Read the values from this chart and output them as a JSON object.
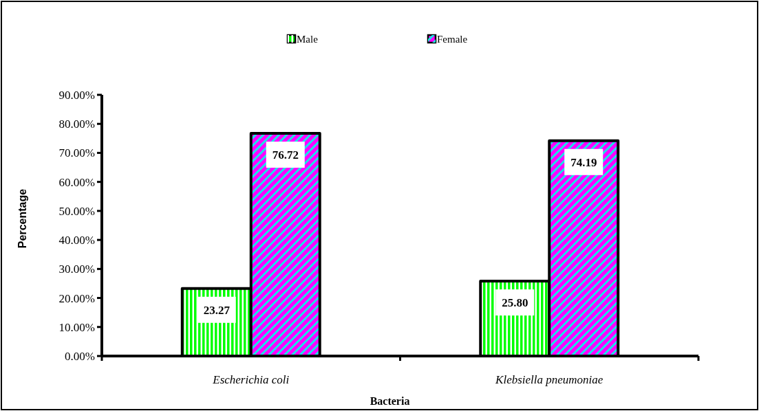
{
  "chart_data": {
    "type": "bar",
    "xlabel": "Bacteria",
    "ylabel": "Percentage",
    "categories": [
      "Escherichia coli",
      "Klebsiella pneumoniae"
    ],
    "series": [
      {
        "name": "Male",
        "color": "#00ff00",
        "values": [
          23.27,
          25.8
        ],
        "value_labels": [
          "23.27",
          "25.80"
        ]
      },
      {
        "name": "Female",
        "color": "#ff00ff",
        "values": [
          76.72,
          74.19
        ],
        "value_labels": [
          "76.72",
          "74.19"
        ]
      }
    ],
    "ylim": [
      0,
      90
    ],
    "yticks": [
      {
        "value": 0,
        "label": "0.00%"
      },
      {
        "value": 10,
        "label": "10.00%"
      },
      {
        "value": 20,
        "label": "20.00%"
      },
      {
        "value": 30,
        "label": "30.00%"
      },
      {
        "value": 40,
        "label": "40.00%"
      },
      {
        "value": 50,
        "label": "50.00%"
      },
      {
        "value": 60,
        "label": "60.00%"
      },
      {
        "value": 70,
        "label": "70.00%"
      },
      {
        "value": 80,
        "label": "80.00%"
      },
      {
        "value": 90,
        "label": "90.00%"
      }
    ],
    "legend": "top",
    "grid": false
  }
}
